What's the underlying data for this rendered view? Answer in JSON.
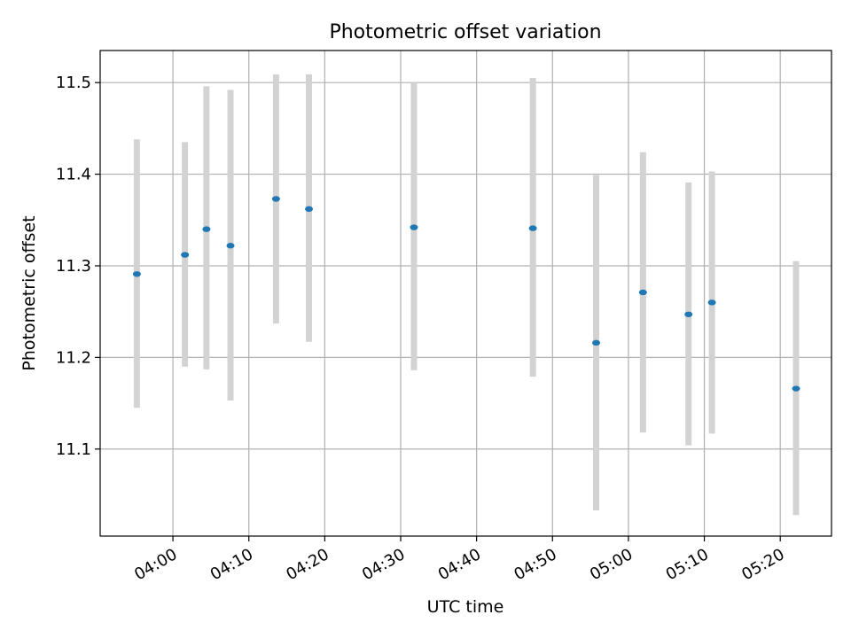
{
  "chart_data": {
    "type": "scatter",
    "title": "Photometric offset variation",
    "xlabel": "UTC time",
    "ylabel": "Photometric offset",
    "x_axis": {
      "kind": "time",
      "range": [
        "03:50:25",
        "05:26:45"
      ],
      "ticks": [
        "04:00",
        "04:10",
        "04:20",
        "04:30",
        "04:40",
        "04:50",
        "05:00",
        "05:10",
        "05:20"
      ]
    },
    "y_axis": {
      "range": [
        11.005,
        11.535
      ],
      "ticks": [
        "11.1",
        "11.2",
        "11.3",
        "11.4",
        "11.5"
      ]
    },
    "grid": true,
    "points": [
      {
        "time": "03:55:15",
        "y": 11.291,
        "err_low": 11.145,
        "err_high": 11.438
      },
      {
        "time": "04:01:35",
        "y": 11.312,
        "err_low": 11.19,
        "err_high": 11.435
      },
      {
        "time": "04:04:25",
        "y": 11.34,
        "err_low": 11.187,
        "err_high": 11.496
      },
      {
        "time": "04:07:35",
        "y": 11.322,
        "err_low": 11.153,
        "err_high": 11.492
      },
      {
        "time": "04:13:35",
        "y": 11.373,
        "err_low": 11.237,
        "err_high": 11.509
      },
      {
        "time": "04:17:55",
        "y": 11.362,
        "err_low": 11.217,
        "err_high": 11.509
      },
      {
        "time": "04:31:45",
        "y": 11.342,
        "err_low": 11.186,
        "err_high": 11.5
      },
      {
        "time": "04:47:25",
        "y": 11.341,
        "err_low": 11.179,
        "err_high": 11.505
      },
      {
        "time": "04:55:45",
        "y": 11.216,
        "err_low": 11.033,
        "err_high": 11.399
      },
      {
        "time": "05:01:55",
        "y": 11.271,
        "err_low": 11.118,
        "err_high": 11.424
      },
      {
        "time": "05:07:55",
        "y": 11.247,
        "err_low": 11.104,
        "err_high": 11.391
      },
      {
        "time": "05:11:00",
        "y": 11.26,
        "err_low": 11.117,
        "err_high": 11.403
      },
      {
        "time": "05:22:05",
        "y": 11.166,
        "err_low": 11.028,
        "err_high": 11.305
      }
    ],
    "colors": {
      "marker": "#1f77b4",
      "errorbar": "#d3d3d3",
      "grid": "#b0b0b0"
    }
  }
}
